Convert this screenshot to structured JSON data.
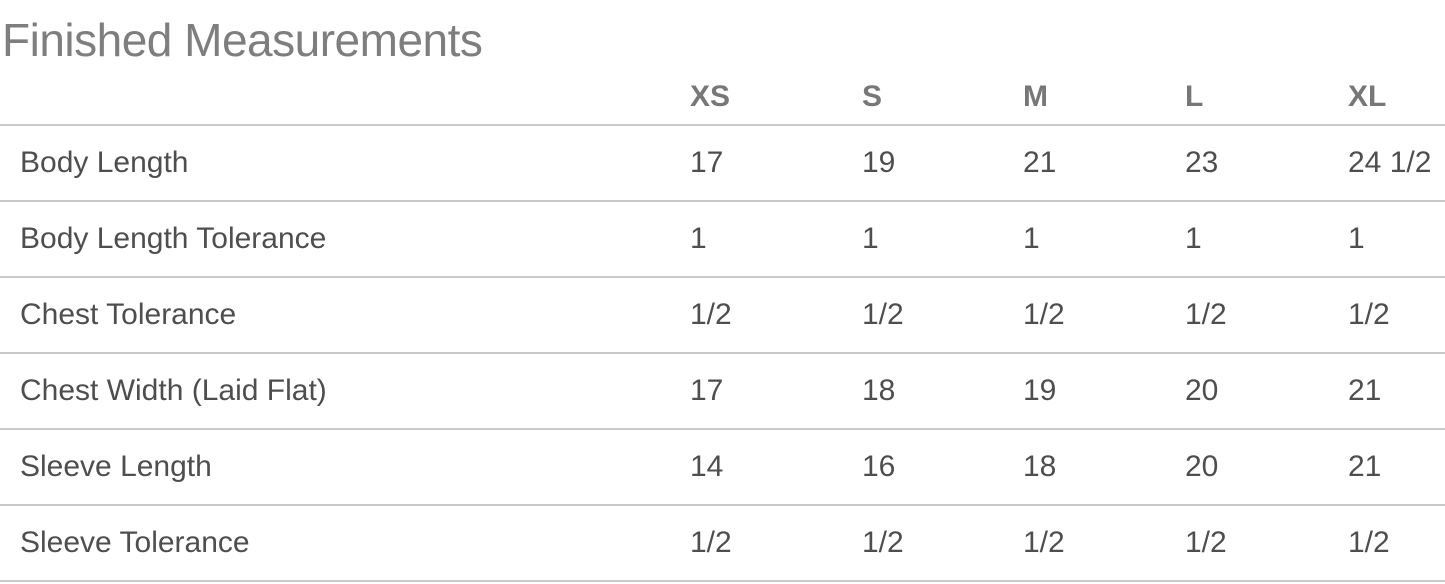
{
  "page": {
    "title": "Finished Measurements"
  },
  "measurements_table": {
    "label_column_header": "",
    "size_headers": [
      "XS",
      "S",
      "M",
      "L",
      "XL"
    ],
    "rows": [
      {
        "label": "Body Length",
        "values": [
          "17",
          "19",
          "21",
          "23",
          "24 1/2"
        ]
      },
      {
        "label": "Body Length Tolerance",
        "values": [
          "1",
          "1",
          "1",
          "1",
          "1"
        ]
      },
      {
        "label": "Chest Tolerance",
        "values": [
          "1/2",
          "1/2",
          "1/2",
          "1/2",
          "1/2"
        ]
      },
      {
        "label": "Chest Width (Laid Flat)",
        "values": [
          "17",
          "18",
          "19",
          "20",
          "21"
        ]
      },
      {
        "label": "Sleeve Length",
        "values": [
          "14",
          "16",
          "18",
          "20",
          "21"
        ]
      },
      {
        "label": "Sleeve Tolerance",
        "values": [
          "1/2",
          "1/2",
          "1/2",
          "1/2",
          "1/2"
        ]
      }
    ]
  },
  "colors": {
    "title_text": "#7e7e7e",
    "header_text": "#777777",
    "body_text": "#4e4e4e",
    "divider": "#c9c9c9",
    "background": "#ffffff"
  }
}
